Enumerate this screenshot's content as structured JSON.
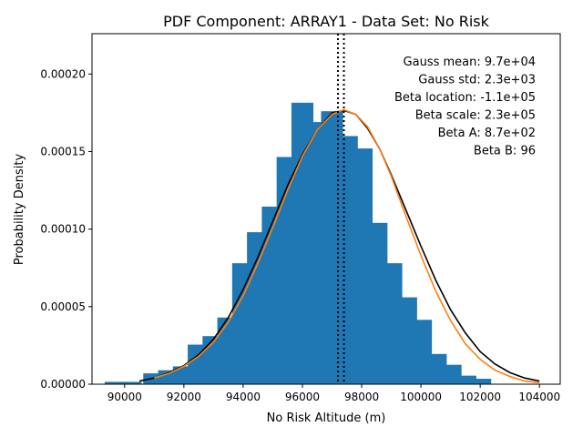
{
  "chart_data": {
    "type": "bar",
    "title": "PDF Component: ARRAY1 - Data Set: No Risk",
    "xlabel": "No Risk Altitude (m)",
    "ylabel": "Probability Density",
    "xlim": [
      88900,
      104700
    ],
    "ylim": [
      0,
      0.000226
    ],
    "x_ticks": [
      90000,
      92000,
      94000,
      96000,
      98000,
      100000,
      102000,
      104000
    ],
    "x_tick_labels": [
      "90000",
      "92000",
      "94000",
      "96000",
      "98000",
      "100000",
      "102000",
      "104000"
    ],
    "y_ticks": [
      0,
      5e-05,
      0.0001,
      0.00015,
      0.0002
    ],
    "y_tick_labels": [
      "0.00000",
      "0.00005",
      "0.00010",
      "0.00015",
      "0.00020"
    ],
    "bar_width": 740,
    "bins": {
      "x": [
        89800,
        90750,
        91700,
        92650,
        93600,
        94550,
        95500,
        96450,
        97400,
        98350,
        99300,
        100250,
        101200,
        102150,
        103100,
        104050
      ],
      "values": []
    },
    "series": [
      {
        "type": "bar",
        "color": "#1f77b4",
        "x": [
          89700,
          90190,
          90680,
          91170,
          91660,
          92150,
          92640,
          93130,
          93620,
          94110,
          94600,
          95090,
          95580,
          96070,
          96560,
          97050,
          97540,
          98030,
          98520,
          99010,
          99500,
          99990,
          100480,
          100970,
          101460,
          101950,
          102440,
          102930,
          103420,
          103910
        ],
        "values": [
          0,
          0,
          0,
          0,
          0,
          0,
          0,
          0,
          0,
          0,
          0,
          0,
          0,
          0,
          0,
          0,
          0,
          0,
          0,
          0,
          0,
          0,
          0,
          0,
          0,
          0,
          0,
          0,
          0,
          0
        ]
      }
    ],
    "histogram": {
      "color": "#1f77b4",
      "centers": [
        89700,
        90200,
        91000,
        91500,
        92000,
        92500,
        93000,
        93500,
        94000,
        94500,
        95000,
        95500,
        96000,
        96500,
        97000,
        97500,
        98000,
        98500,
        99000,
        99500,
        100000,
        100500,
        101000,
        101500,
        102000,
        102500,
        103000,
        103500,
        104000
      ],
      "values": [
        1.5e-06,
        1.5e-06,
        7e-06,
        9e-06,
        1.15e-05,
        2.55e-05,
        3.1e-05,
        4.3e-05,
        7.8e-05,
        9.8e-05,
        0.0001145,
        0.0001465,
        0.0001815,
        0.000169,
        0.000176,
        0.00016,
        0.000152,
        0.000104,
        7.8e-05,
        5.6e-05,
        4.15e-05,
        1.95e-05,
        1.25e-05,
        5.5e-06,
        3.5e-06,
        0,
        0,
        0,
        0
      ]
    },
    "curves": [
      {
        "name": "Gauss",
        "color": "#000000",
        "x": [
          90500,
          91000,
          91500,
          92000,
          92500,
          93000,
          93500,
          94000,
          94500,
          95000,
          95500,
          96000,
          96500,
          97000,
          97400,
          97800,
          98200,
          98600,
          99000,
          99500,
          100000,
          100500,
          101000,
          101500,
          102000,
          102500,
          103000,
          103500,
          104000
        ],
        "y": [
          2e-06,
          4e-06,
          7.5e-06,
          1.2e-05,
          1.9e-05,
          2.9e-05,
          4.3e-05,
          6.1e-05,
          8.2e-05,
          0.000105,
          0.000128,
          0.000148,
          0.000164,
          0.000175,
          0.0001765,
          0.000174,
          0.000165,
          0.000152,
          0.000135,
          0.000112,
          8.9e-05,
          6.7e-05,
          4.8e-05,
          3.3e-05,
          2.1e-05,
          1.3e-05,
          7.5e-06,
          4e-06,
          2e-06
        ]
      },
      {
        "name": "Beta",
        "color": "#ff7f0e",
        "x": [
          91000,
          91500,
          92000,
          92500,
          93000,
          93500,
          94000,
          94500,
          95000,
          95500,
          96000,
          96500,
          97000,
          97400,
          97800,
          98200,
          98600,
          99000,
          99500,
          100000,
          100500,
          101000,
          101500,
          102000,
          102500,
          103000,
          103500,
          104000
        ],
        "y": [
          4e-06,
          7e-06,
          1.15e-05,
          1.8e-05,
          2.7e-05,
          4e-05,
          5.7e-05,
          7.8e-05,
          0.000101,
          0.000125,
          0.000147,
          0.000164,
          0.000174,
          0.000177,
          0.000174,
          0.000166,
          0.000152,
          0.000134,
          0.000108,
          8.3e-05,
          6e-05,
          4.1e-05,
          2.6e-05,
          1.6e-05,
          9e-06,
          5e-06,
          2e-06,
          1e-06
        ]
      }
    ],
    "vlines": [
      97200,
      97400
    ],
    "grid": false,
    "annotations": [
      "Gauss mean: 9.7e+04",
      "Gauss std: 2.3e+03",
      "Beta location: -1.1e+05",
      "Beta scale: 2.3e+05",
      "Beta A: 8.7e+02",
      "Beta B: 96"
    ]
  }
}
